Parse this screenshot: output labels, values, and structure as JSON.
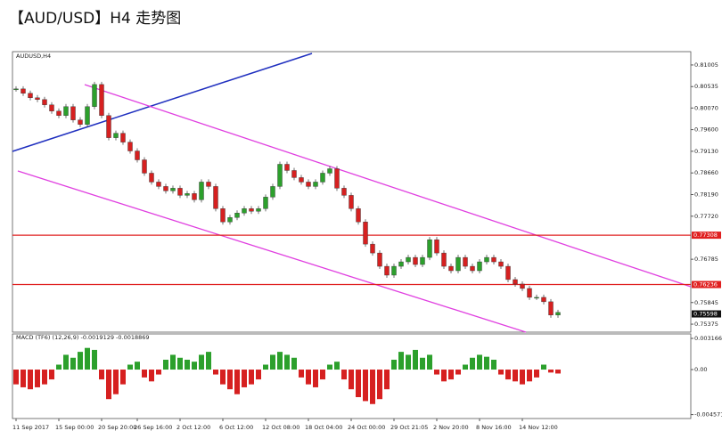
{
  "chart_data": {
    "type": "candlestick",
    "title": "【AUD/USD】H4 走势图",
    "symbol": "AUDUSD,H4",
    "ohlc": [
      0.75517,
      0.75612,
      0.75491,
      0.75598
    ],
    "current_price": 0.75598,
    "levels": [
      0.77308,
      0.76236
    ],
    "categories": [
      "11 Sep 2017",
      null,
      null,
      null,
      null,
      null,
      "15 Sep 00:00",
      null,
      null,
      null,
      null,
      null,
      "20 Sep 20:00",
      null,
      null,
      null,
      null,
      "26 Sep 16:00",
      null,
      null,
      null,
      null,
      null,
      "2 Oct 12:00",
      null,
      null,
      null,
      null,
      null,
      "6 Oct 12:00",
      null,
      null,
      null,
      null,
      null,
      "12 Oct 08:00",
      null,
      null,
      null,
      null,
      null,
      "18 Oct 04:00",
      null,
      null,
      null,
      null,
      null,
      "24 Oct 00:00",
      null,
      null,
      null,
      null,
      null,
      "29 Oct 21:05",
      null,
      null,
      null,
      null,
      null,
      "2 Nov 20:00",
      null,
      null,
      null,
      null,
      null,
      "8 Nov 16:00",
      null,
      null,
      null,
      null,
      null,
      "14 Nov 12:00",
      null,
      null,
      null,
      null,
      null,
      null
    ],
    "closes": [
      0.80485,
      0.80389,
      0.80292,
      0.80254,
      0.80138,
      0.80003,
      0.79907,
      0.801,
      0.79811,
      0.79714,
      0.801,
      0.80581,
      0.79907,
      0.79425,
      0.79522,
      0.79329,
      0.79137,
      0.78944,
      0.78655,
      0.78462,
      0.78366,
      0.7827,
      0.78328,
      0.78173,
      0.78212,
      0.78077,
      0.78462,
      0.78366,
      0.77884,
      0.77596,
      0.77692,
      0.77788,
      0.77884,
      0.77827,
      0.77884,
      0.78135,
      0.78366,
      0.78848,
      0.78713,
      0.78559,
      0.78462,
      0.78366,
      0.78462,
      0.78655,
      0.78751,
      0.78328,
      0.78173,
      0.77884,
      0.77596,
      0.77114,
      0.76921,
      0.76632,
      0.7644,
      0.76632,
      0.76729,
      0.76825,
      0.76671,
      0.76825,
      0.7721,
      0.76921,
      0.76632,
      0.76536,
      0.76825,
      0.76632,
      0.76536,
      0.76729,
      0.76825,
      0.76729,
      0.76632,
      0.76344,
      0.76247,
      0.76151,
      0.75958,
      0.75958,
      0.75862,
      0.75573,
      0.75631
    ],
    "ylim": [
      0.75202,
      0.81294
    ],
    "yticks": [
      0.81005,
      0.80535,
      {
        "value": 0.8007,
        "label": "0.80070"
      },
      {
        "value": 0.796,
        "label": "0.79600"
      },
      {
        "value": 0.7913,
        "label": "0.79130"
      },
      {
        "value": 0.7866,
        "label": "0.78660"
      },
      {
        "value": 0.7819,
        "label": "0.78190"
      },
      {
        "value": 0.7772,
        "label": "0.77720"
      },
      0.76785,
      0.75845,
      0.75375
    ],
    "macd_label": "MACD (TF6) (12,26,9) -0.0019129 -0.0018869",
    "macd": [
      -0.0015,
      -0.0018,
      -0.002,
      -0.0018,
      -0.0015,
      -0.001,
      0.0005,
      0.0015,
      0.0012,
      0.0018,
      0.0022,
      0.002,
      -0.001,
      -0.003,
      -0.0025,
      -0.0015,
      0.0005,
      0.0008,
      -0.0008,
      -0.0012,
      -0.0005,
      0.001,
      0.0015,
      0.0012,
      0.001,
      0.0008,
      0.0015,
      0.0018,
      -0.0005,
      -0.0015,
      -0.002,
      -0.0025,
      -0.0018,
      -0.0015,
      -0.001,
      0.0005,
      0.0015,
      0.0018,
      0.0015,
      0.0012,
      -0.0008,
      -0.0015,
      -0.0018,
      -0.001,
      0.0005,
      0.0008,
      -0.001,
      -0.002,
      -0.0028,
      -0.0032,
      -0.0035,
      -0.003,
      -0.002,
      0.001,
      0.0018,
      0.0015,
      0.002,
      0.0012,
      0.0015,
      -0.0005,
      -0.0012,
      -0.001,
      -0.0005,
      0.0005,
      0.0012,
      0.0015,
      0.0013,
      0.001,
      -0.0005,
      -0.001,
      -0.0012,
      -0.0015,
      -0.0012,
      -0.0008,
      0.0005,
      -0.0003,
      -0.0004
    ],
    "macd_ylim": [
      -0.00497,
      0.00362
    ],
    "macd_yticks": [
      0.003166,
      {
        "value": 0,
        "label": "0.00"
      },
      -0.004571
    ],
    "up_color": "#2ca02c",
    "down_color": "#d62020"
  }
}
